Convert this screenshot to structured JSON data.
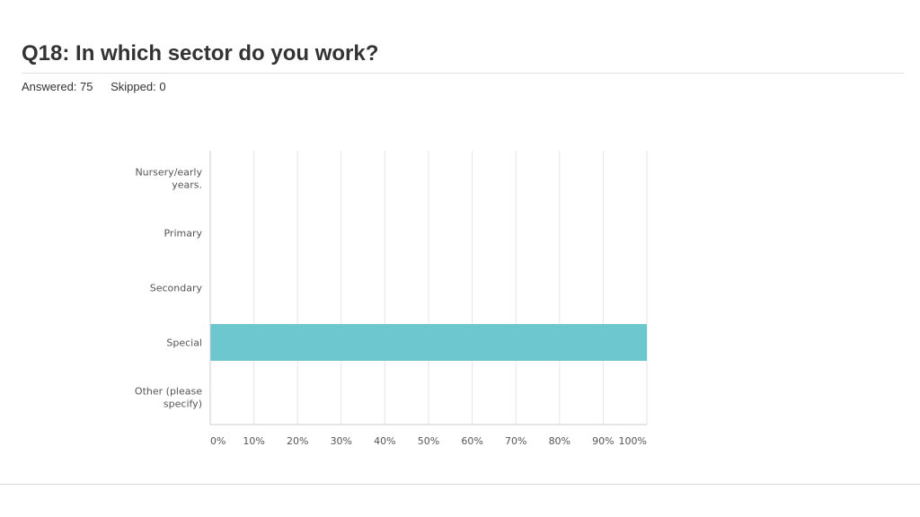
{
  "header": {
    "title": "Q18: In which sector do you work?",
    "answered": "Answered: 75",
    "skipped": "Skipped: 0"
  },
  "colors": {
    "bar": "#6cc8ce",
    "grid": "#e6e6e6",
    "axis": "#cccccc"
  },
  "chart_data": {
    "type": "bar",
    "orientation": "horizontal",
    "categories": [
      "Nursery/early years.",
      "Primary",
      "Secondary",
      "Special",
      "Other (please specify)"
    ],
    "category_lines": [
      [
        "Nursery/early",
        "years."
      ],
      [
        "Primary"
      ],
      [
        "Secondary"
      ],
      [
        "Special"
      ],
      [
        "Other (please",
        "specify)"
      ]
    ],
    "values": [
      0,
      0,
      0,
      100,
      0
    ],
    "xlim": [
      0,
      100
    ],
    "x_ticks": [
      0,
      10,
      20,
      30,
      40,
      50,
      60,
      70,
      80,
      90,
      100
    ],
    "x_tick_labels": [
      "0%",
      "10%",
      "20%",
      "30%",
      "40%",
      "50%",
      "60%",
      "70%",
      "80%",
      "90%",
      "100%"
    ],
    "grid": true
  }
}
